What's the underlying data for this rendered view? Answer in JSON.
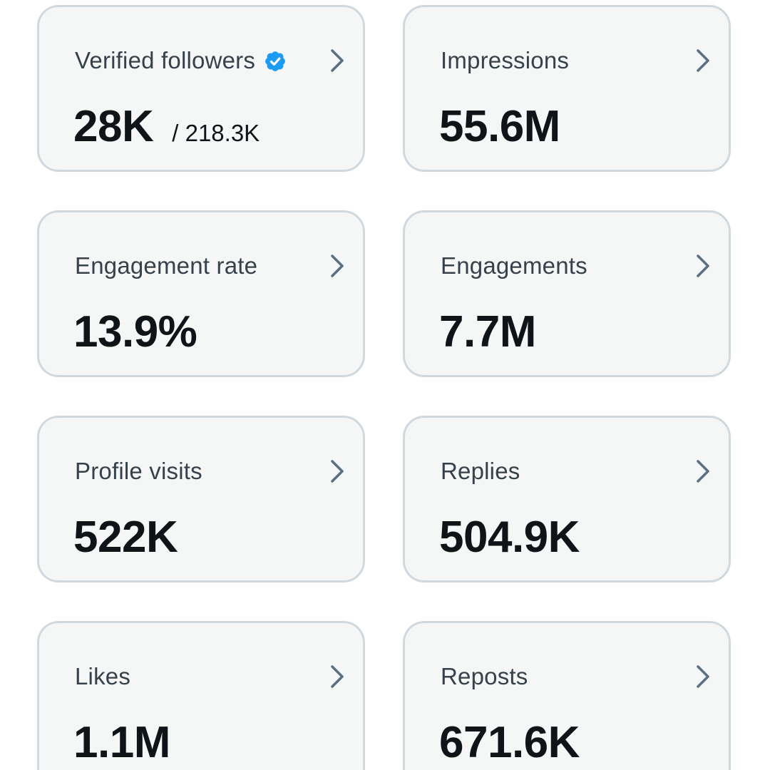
{
  "colors": {
    "card_background": "#f5f7f7",
    "card_border": "#cfd9de",
    "label_text": "#36414b",
    "value_text": "#0f1419",
    "chevron": "#5b7083",
    "verified_badge": "#1d9bf0"
  },
  "cards": [
    {
      "label": "Verified followers",
      "value": "28K",
      "subvalue": "/ 218.3K",
      "icons": [
        "verified-badge-icon",
        "chevron-right-icon"
      ]
    },
    {
      "label": "Impressions",
      "value": "55.6M",
      "icons": [
        "chevron-right-icon"
      ]
    },
    {
      "label": "Engagement rate",
      "value": "13.9%",
      "icons": [
        "chevron-right-icon"
      ]
    },
    {
      "label": "Engagements",
      "value": "7.7M",
      "icons": [
        "chevron-right-icon"
      ]
    },
    {
      "label": "Profile visits",
      "value": "522K",
      "icons": [
        "chevron-right-icon"
      ]
    },
    {
      "label": "Replies",
      "value": "504.9K",
      "icons": [
        "chevron-right-icon"
      ]
    },
    {
      "label": "Likes",
      "value": "1.1M",
      "icons": [
        "chevron-right-icon"
      ]
    },
    {
      "label": "Reposts",
      "value": "671.6K",
      "icons": [
        "chevron-right-icon"
      ]
    }
  ]
}
